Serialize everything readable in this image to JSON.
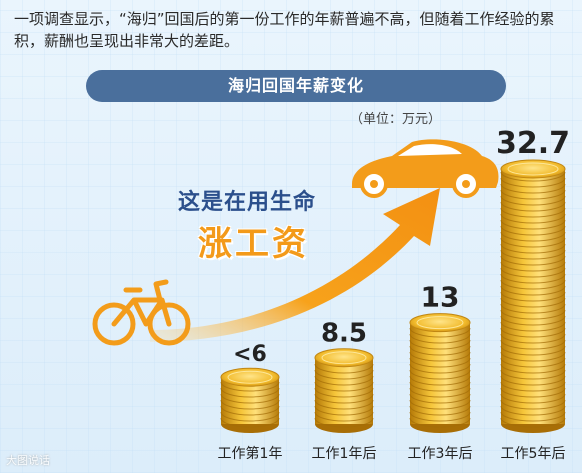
{
  "intro": "一项调查显示，“海归”回国后的第一份工作的年薪普遍不高，但随着工作经验的累积，薪酬也呈现出非常大的差距。",
  "slogan": {
    "line1": "这是在用生命",
    "line2": "涨工资"
  },
  "watermark": "大图说话",
  "colors": {
    "coin": "#e9b021",
    "coin_dark": "#b97f0b",
    "coin_light": "#ffe27a",
    "banner": "#4a6f9c",
    "arrow": "#f7a21b",
    "icons": "#f39c1a"
  },
  "icons": [
    "bicycle-icon",
    "sports-car-icon",
    "growth-arrow-icon"
  ],
  "chart_data": {
    "type": "bar",
    "title": "海归回国年薪变化",
    "unit_label": "（单位：万元）",
    "categories": [
      "工作第1年",
      "工作1年后",
      "工作3年后",
      "工作5年后"
    ],
    "values": [
      6,
      8.5,
      13,
      32.7
    ],
    "value_labels": [
      "<6",
      "8.5",
      "13",
      "32.7"
    ],
    "grid": false,
    "legend": "none"
  }
}
